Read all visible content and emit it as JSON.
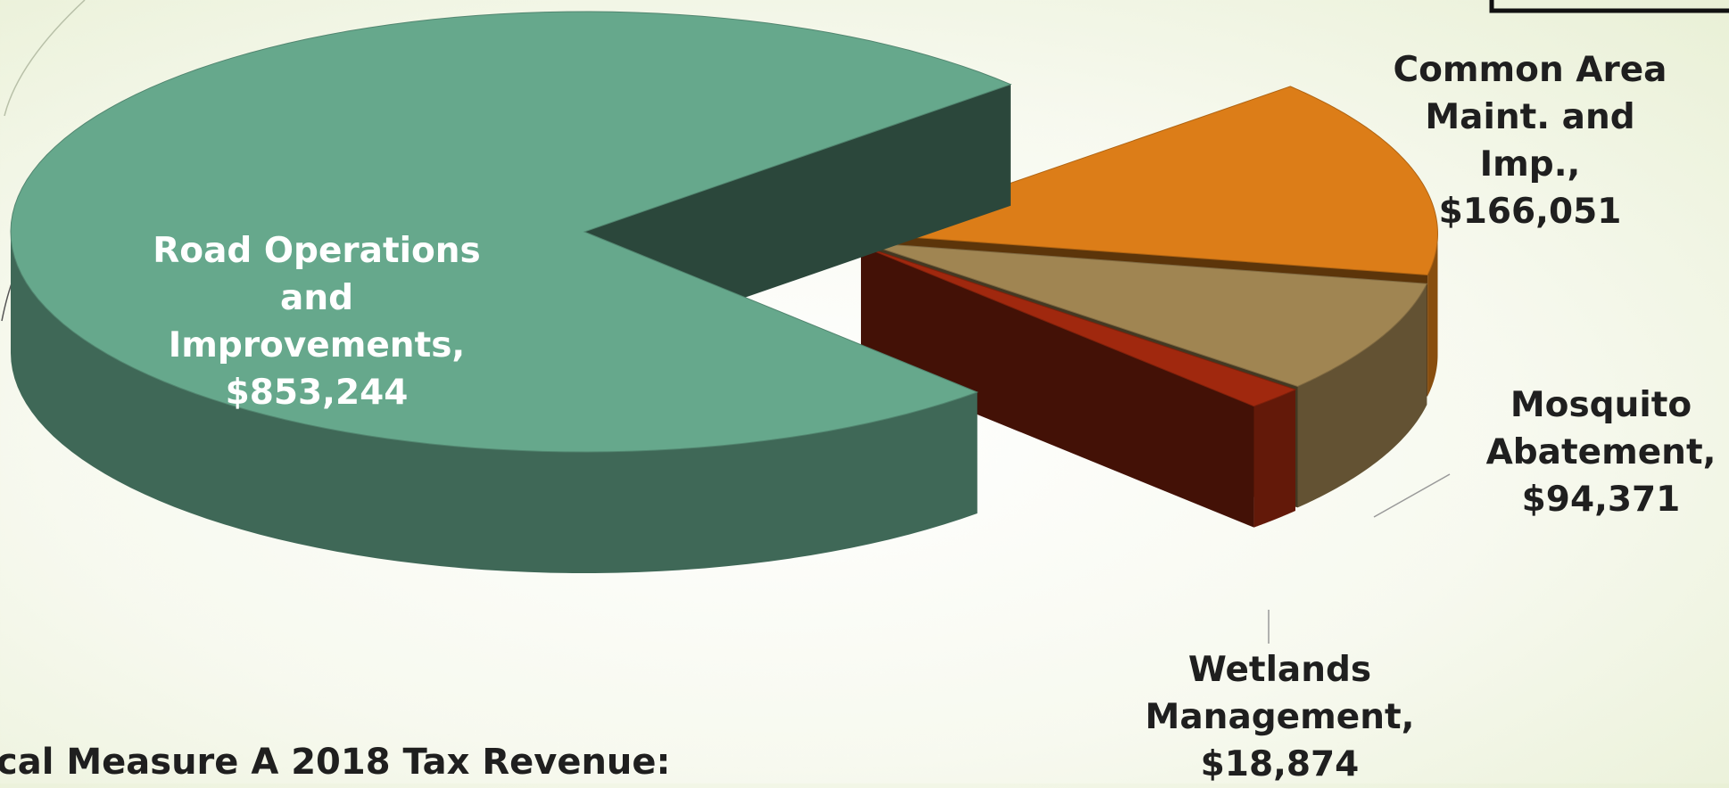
{
  "chart_data": {
    "type": "pie",
    "title": "cal Measure A 2018 Tax Revenue:",
    "categories": [
      "Common Area Maint. and Imp.,",
      "Mosquito Abatement,",
      "Wetlands Management,",
      "Road Operations and Improvements,"
    ],
    "values": [
      166051,
      94371,
      18874,
      853244
    ],
    "value_labels": [
      "$166,051",
      "$94,371",
      "$18,874",
      "$853,244"
    ],
    "colors": [
      "#dc7d18",
      "#a08552",
      "#a0280e",
      "#66a88c"
    ],
    "exploded": [
      true,
      true,
      true,
      false
    ]
  }
}
